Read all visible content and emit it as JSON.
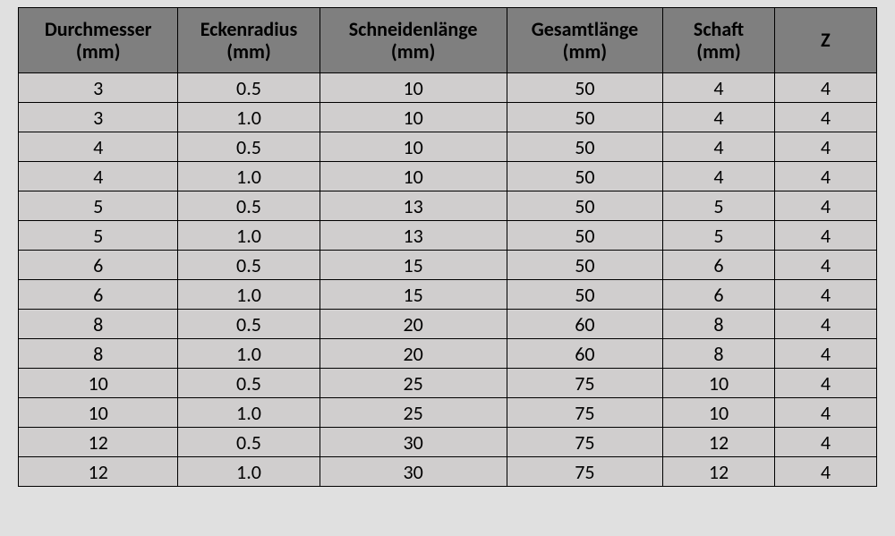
{
  "table": {
    "type": "table",
    "header_bg": "#7f7f7f",
    "body_bg": "#d0cece",
    "border_color": "#000000",
    "page_bg": "#e0e0e0",
    "header_fontsize": 22,
    "body_fontsize": 22,
    "font_family": "Calibri",
    "columns": [
      {
        "line1": "Durchmesser",
        "line2": "(mm)",
        "width_pct": 18.6,
        "align": "center"
      },
      {
        "line1": "Eckenradius",
        "line2": "(mm)",
        "width_pct": 16.5,
        "align": "center"
      },
      {
        "line1": "Schneidenlänge",
        "line2": "(mm)",
        "width_pct": 21.8,
        "align": "center"
      },
      {
        "line1": "Gesamtlänge",
        "line2": "(mm)",
        "width_pct": 18.2,
        "align": "center"
      },
      {
        "line1": "Schaft",
        "line2": "(mm)",
        "width_pct": 13.0,
        "align": "center"
      },
      {
        "line1": "Z",
        "line2": "",
        "width_pct": 11.9,
        "align": "center"
      }
    ],
    "rows": [
      [
        "3",
        "0.5",
        "10",
        "50",
        "4",
        "4"
      ],
      [
        "3",
        "1.0",
        "10",
        "50",
        "4",
        "4"
      ],
      [
        "4",
        "0.5",
        "10",
        "50",
        "4",
        "4"
      ],
      [
        "4",
        "1.0",
        "10",
        "50",
        "4",
        "4"
      ],
      [
        "5",
        "0.5",
        "13",
        "50",
        "5",
        "4"
      ],
      [
        "5",
        "1.0",
        "13",
        "50",
        "5",
        "4"
      ],
      [
        "6",
        "0.5",
        "15",
        "50",
        "6",
        "4"
      ],
      [
        "6",
        "1.0",
        "15",
        "50",
        "6",
        "4"
      ],
      [
        "8",
        "0.5",
        "20",
        "60",
        "8",
        "4"
      ],
      [
        "8",
        "1.0",
        "20",
        "60",
        "8",
        "4"
      ],
      [
        "10",
        "0.5",
        "25",
        "75",
        "10",
        "4"
      ],
      [
        "10",
        "1.0",
        "25",
        "75",
        "10",
        "4"
      ],
      [
        "12",
        "0.5",
        "30",
        "75",
        "12",
        "4"
      ],
      [
        "12",
        "1.0",
        "30",
        "75",
        "12",
        "4"
      ]
    ]
  }
}
